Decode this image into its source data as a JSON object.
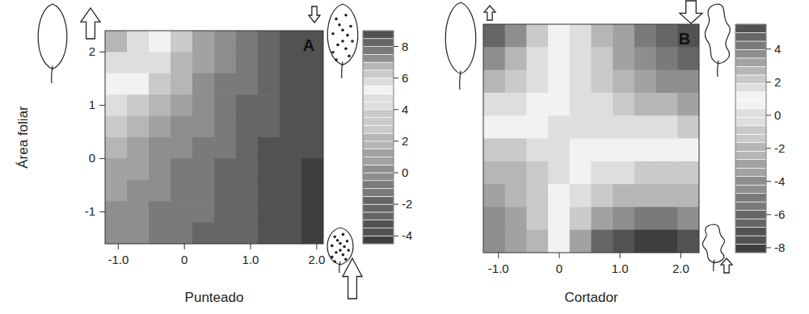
{
  "chart_data": [
    {
      "type": "heatmap",
      "title": "A",
      "x_label": "Punteado",
      "y_label": "Área foliar",
      "x": [
        -1.035,
        -0.705,
        -0.375,
        -0.045,
        0.285,
        0.615,
        0.945,
        1.275,
        1.605,
        1.935
      ],
      "y": [
        2.2,
        1.8,
        1.4,
        1.0,
        0.6,
        0.2,
        -0.2,
        -0.6,
        -1.0,
        -1.4
      ],
      "values": [
        [
          2.3,
          4.0,
          5.4,
          6.3,
          7.0,
          7.6,
          8.0,
          8.3,
          8.5,
          8.8
        ],
        [
          3.9,
          4.7,
          5.7,
          6.5,
          7.1,
          7.6,
          8.0,
          8.3,
          8.6,
          8.8
        ],
        [
          5.1,
          5.5,
          6.2,
          6.8,
          7.3,
          7.7,
          8.0,
          8.3,
          8.6,
          8.8
        ],
        [
          5.9,
          6.2,
          6.6,
          7.1,
          7.5,
          7.8,
          8.1,
          8.4,
          8.6,
          8.8
        ],
        [
          6.4,
          6.7,
          7.0,
          7.3,
          7.6,
          7.9,
          8.2,
          8.4,
          8.6,
          8.8
        ],
        [
          6.8,
          7.0,
          7.3,
          7.5,
          7.8,
          8.0,
          8.2,
          8.5,
          8.7,
          8.8
        ],
        [
          7.1,
          7.2,
          7.4,
          7.7,
          7.9,
          8.1,
          8.3,
          8.5,
          8.7,
          8.9
        ],
        [
          7.2,
          7.4,
          7.6,
          7.8,
          8.0,
          8.2,
          8.3,
          8.5,
          8.7,
          8.9
        ],
        [
          7.3,
          7.5,
          7.7,
          7.8,
          8.0,
          8.2,
          8.4,
          8.5,
          8.7,
          8.9
        ],
        [
          7.4,
          7.6,
          7.7,
          7.9,
          8.1,
          8.2,
          8.4,
          8.6,
          8.7,
          8.9
        ]
      ],
      "xlim": [
        -1.2,
        2.1
      ],
      "ylim": [
        -1.6,
        2.4
      ],
      "xticks": [
        {
          "value": -1,
          "label": "-1.0"
        },
        0,
        {
          "value": 1,
          "label": "1.0"
        },
        {
          "value": 2,
          "label": "2.0"
        }
      ],
      "yticks": [
        -1,
        0,
        1,
        2
      ],
      "color_range": [
        -4.5,
        9
      ],
      "color_ticks": [
        -4,
        -2,
        0,
        2,
        4,
        6,
        8
      ],
      "color_mid": 5.5
    },
    {
      "type": "heatmap",
      "title": "B",
      "x_label": "Cortador",
      "x": [
        -1.0725,
        -0.7175,
        -0.3625,
        -0.0075,
        0.3475,
        0.7025,
        1.0575,
        1.4125,
        1.7675,
        2.1225
      ],
      "y": [
        2.2,
        1.8,
        1.4,
        1.0,
        0.6,
        0.2,
        -0.2,
        -0.6,
        -1.0,
        -1.4
      ],
      "values": [
        [
          -6.5,
          -4.5,
          -1.5,
          0.5,
          1.5,
          2.5,
          3.2,
          3.9,
          4.6,
          5.2
        ],
        [
          -4.5,
          -2.5,
          -0.5,
          0.8,
          1.5,
          2.2,
          2.8,
          3.4,
          4.0,
          4.5
        ],
        [
          -2.5,
          -1.0,
          0.3,
          1.0,
          1.5,
          2.0,
          2.4,
          2.9,
          3.3,
          3.7
        ],
        [
          -0.5,
          0.2,
          0.8,
          1.2,
          1.4,
          1.7,
          2.0,
          2.3,
          2.6,
          2.9
        ],
        [
          1.0,
          1.1,
          1.2,
          1.3,
          1.3,
          1.3,
          1.4,
          1.5,
          1.7,
          1.9
        ],
        [
          2.0,
          1.8,
          1.5,
          1.3,
          1.0,
          0.8,
          0.6,
          0.5,
          0.5,
          0.6
        ],
        [
          2.6,
          2.3,
          1.8,
          1.3,
          0.6,
          0.0,
          -0.5,
          -0.8,
          -0.9,
          -0.8
        ],
        [
          3.0,
          2.7,
          2.0,
          1.2,
          0.0,
          -1.2,
          -2.0,
          -2.5,
          -2.6,
          -2.4
        ],
        [
          3.3,
          3.0,
          2.2,
          1.0,
          -1.0,
          -3.0,
          -4.2,
          -4.8,
          -5.0,
          -4.6
        ],
        [
          3.5,
          3.2,
          2.3,
          0.8,
          -3.5,
          -6.0,
          -7.2,
          -7.8,
          -7.9,
          -7.5
        ]
      ],
      "xlim": [
        -1.25,
        2.3
      ],
      "ylim": [
        -1.6,
        2.4
      ],
      "xticks": [
        {
          "value": -1,
          "label": "-1.0"
        },
        0,
        {
          "value": 1,
          "label": "1.0"
        },
        {
          "value": 2,
          "label": "2.0"
        }
      ],
      "tick_labels": "x",
      "color_range": [
        -8.3,
        5.5
      ],
      "color_ticks": [
        -8,
        -6,
        -4,
        -2,
        0,
        2,
        4
      ],
      "color_mid": 1
    }
  ]
}
